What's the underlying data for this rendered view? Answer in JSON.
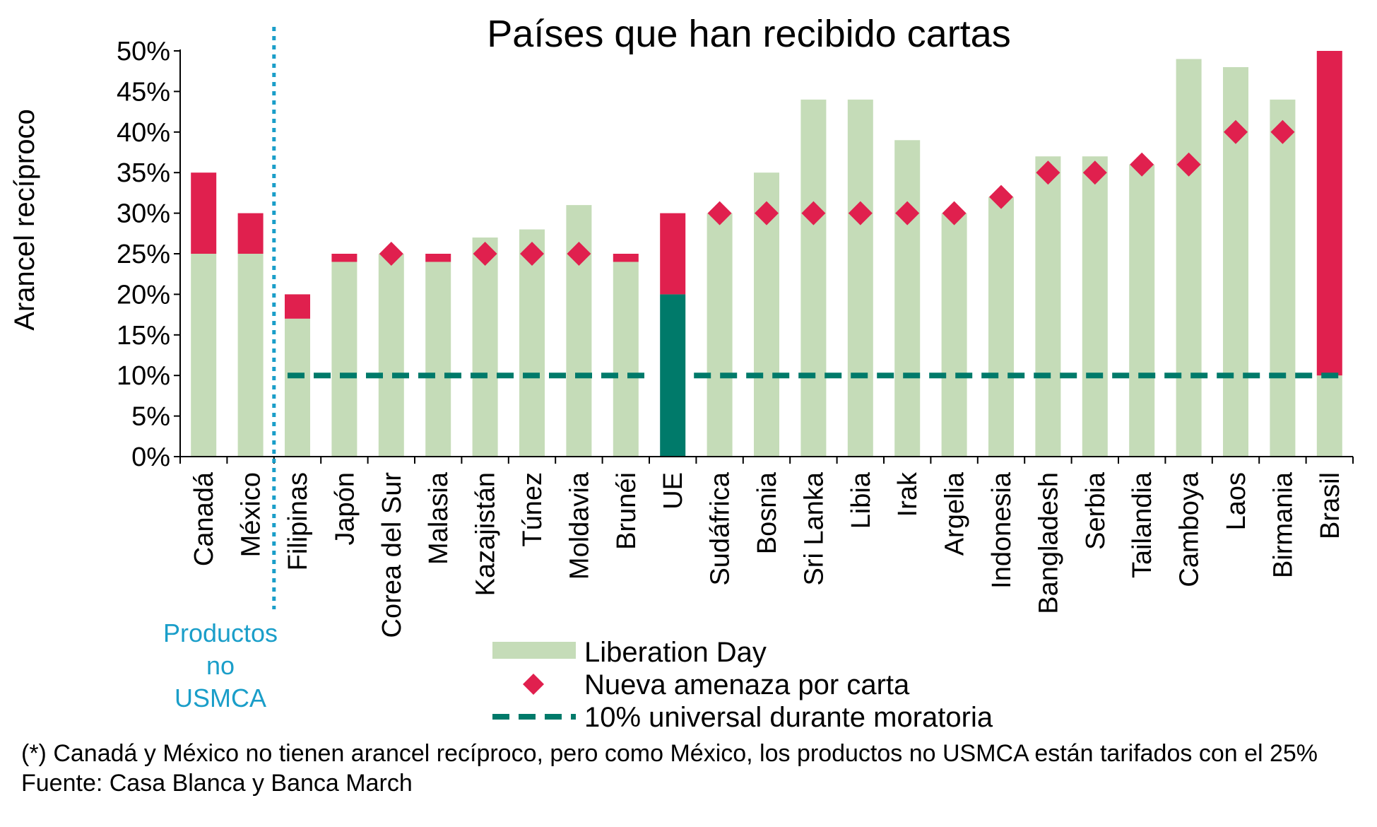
{
  "chart_data": {
    "type": "bar",
    "title": "Países que han recibido cartas",
    "ylabel": "Arancel recíproco",
    "xlabel": "",
    "ylim": [
      0,
      0.5
    ],
    "yticks": [
      "0%",
      "5%",
      "10%",
      "15%",
      "20%",
      "25%",
      "30%",
      "35%",
      "40%",
      "45%",
      "50%"
    ],
    "categories": [
      "Canadá",
      "México",
      "Filipinas",
      "Japón",
      "Corea del Sur",
      "Malasia",
      "Kazajistán",
      "Túnez",
      "Moldavia",
      "Brunéi",
      "UE",
      "Sudáfrica",
      "Bosnia",
      "Sri Lanka",
      "Libia",
      "Irak",
      "Argelia",
      "Indonesia",
      "Bangladesh",
      "Serbia",
      "Tailandia",
      "Camboya",
      "Laos",
      "Birmania",
      "Brasil"
    ],
    "series": [
      {
        "name": "Liberation Day",
        "kind": "bar",
        "color": "#c5dcb8",
        "values": [
          0.25,
          0.25,
          0.17,
          0.24,
          0.25,
          0.24,
          0.27,
          0.28,
          0.31,
          0.24,
          0.2,
          0.3,
          0.35,
          0.44,
          0.44,
          0.39,
          0.3,
          0.32,
          0.37,
          0.37,
          0.36,
          0.49,
          0.48,
          0.44,
          0.1
        ]
      },
      {
        "name": "Nueva amenaza por carta",
        "kind": "marker",
        "color": "#e0204e",
        "values": [
          0.35,
          0.3,
          0.2,
          0.25,
          0.25,
          0.25,
          0.25,
          0.25,
          0.25,
          0.25,
          0.3,
          0.3,
          0.3,
          0.3,
          0.3,
          0.3,
          0.3,
          0.32,
          0.35,
          0.35,
          0.36,
          0.36,
          0.4,
          0.4,
          0.5
        ]
      },
      {
        "name": "10% universal durante moratoria",
        "kind": "dashed-line",
        "color": "#007a6a",
        "value": 0.1
      }
    ],
    "eu_bar_color": "#007a6a",
    "increase_color": "#e0204e",
    "divider": {
      "after_category_index": 1,
      "color": "#1a9ec9",
      "label": "Productos no USMCA",
      "label_lines": [
        "Productos",
        "no",
        "USMCA"
      ]
    },
    "legend_position": "bottom-center",
    "grid": false
  },
  "footnote": {
    "line1": "(*) Canadá y México no tienen arancel recíproco, pero como México, los productos no USMCA están tarifados con el 25%",
    "source": "Fuente: Casa Blanca y Banca March"
  }
}
